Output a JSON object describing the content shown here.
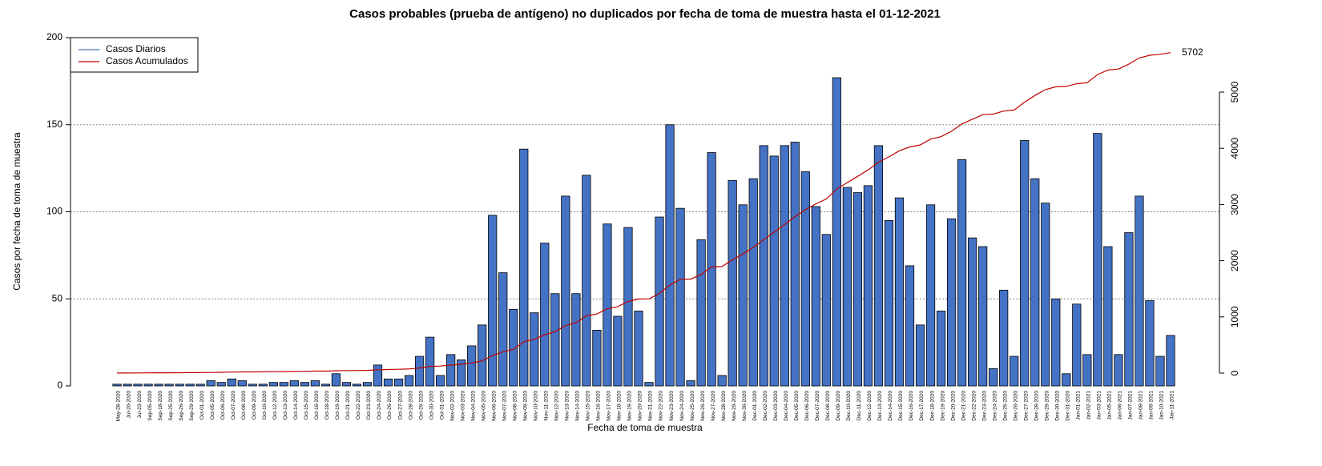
{
  "chart_data": {
    "type": "bar",
    "title": "Casos probables (prueba de antígeno) no duplicados por fecha de toma de muestra hasta el 01-12-2021",
    "x_label": "Fecha de toma de muestra",
    "y_label": "Casos por fecha de toma de muestra",
    "categories": [
      "May-28-2020",
      "Jul-20-2020",
      "Jul-23-2020",
      "Sep-05-2020",
      "Sep-18-2020",
      "Sep-25-2020",
      "Sep-26-2020",
      "Sep-29-2020",
      "Oct-01-2020",
      "Oct-05-2020",
      "Oct-06-2020",
      "Oct-07-2020",
      "Oct-08-2020",
      "Oct-09-2020",
      "Oct-10-2020",
      "Oct-12-2020",
      "Oct-13-2020",
      "Oct-14-2020",
      "Oct-15-2020",
      "Oct-16-2020",
      "Oct-18-2020",
      "Oct-19-2020",
      "Oct-21-2020",
      "Oct-22-2020",
      "Oct-23-2020",
      "Oct-24-2020",
      "Oct-26-2020",
      "Oct-27-2020",
      "Oct-28-2020",
      "Oct-29-2020",
      "Oct-30-2020",
      "Oct-31-2020",
      "Nov-02-2020",
      "Nov-03-2020",
      "Nov-04-2020",
      "Nov-05-2020",
      "Nov-06-2020",
      "Nov-07-2020",
      "Nov-08-2020",
      "Nov-09-2020",
      "Nov-10-2020",
      "Nov-11-2020",
      "Nov-12-2020",
      "Nov-13-2020",
      "Nov-14-2020",
      "Nov-15-2020",
      "Nov-16-2020",
      "Nov-17-2020",
      "Nov-18-2020",
      "Nov-19-2020",
      "Nov-20-2020",
      "Nov-21-2020",
      "Nov-22-2020",
      "Nov-23-2020",
      "Nov-24-2020",
      "Nov-25-2020",
      "Nov-26-2020",
      "Nov-27-2020",
      "Nov-28-2020",
      "Nov-29-2020",
      "Nov-30-2020",
      "Dec-01-2020",
      "Dec-02-2020",
      "Dec-03-2020",
      "Dec-04-2020",
      "Dec-05-2020",
      "Dec-06-2020",
      "Dec-07-2020",
      "Dec-08-2020",
      "Dec-09-2020",
      "Dec-10-2020",
      "Dec-11-2020",
      "Dec-12-2020",
      "Dec-13-2020",
      "Dec-14-2020",
      "Dec-15-2020",
      "Dec-16-2020",
      "Dec-17-2020",
      "Dec-18-2020",
      "Dec-19-2020",
      "Dec-20-2020",
      "Dec-21-2020",
      "Dec-22-2020",
      "Dec-23-2020",
      "Dec-24-2020",
      "Dec-25-2020",
      "Dec-26-2020",
      "Dec-27-2020",
      "Dec-28-2020",
      "Dec-29-2020",
      "Dec-30-2020",
      "Dec-31-2020",
      "Jan-01-2021",
      "Jan-02-2021",
      "Jan-03-2021",
      "Jan-05-2021",
      "Jan-06-2021",
      "Jan-07-2021",
      "Jan-08-2021",
      "Jan-09-2021",
      "Jan-10-2021",
      "Jan-11-2021"
    ],
    "series": [
      {
        "name": "Casos Diarios",
        "color": "#4472c4",
        "values": [
          1,
          1,
          1,
          1,
          1,
          1,
          1,
          1,
          1,
          3,
          2,
          4,
          3,
          1,
          1,
          2,
          2,
          3,
          2,
          3,
          1,
          7,
          2,
          1,
          2,
          12,
          4,
          4,
          6,
          17,
          28,
          6,
          18,
          15,
          23,
          35,
          98,
          65,
          44,
          136,
          42,
          82,
          53,
          109,
          53,
          121,
          32,
          93,
          40,
          91,
          43,
          2,
          97,
          150,
          102,
          3,
          84,
          134,
          6,
          118,
          104,
          119,
          138,
          132,
          138,
          140,
          123,
          103,
          87,
          177,
          114,
          111,
          115,
          138,
          95,
          108,
          69,
          35,
          104,
          43,
          96,
          130,
          85,
          80,
          10,
          55,
          17,
          141,
          119,
          105,
          50,
          7,
          47,
          18,
          145,
          80,
          18,
          88,
          109,
          49,
          17,
          29
        ]
      },
      {
        "name": "Casos Acumulados",
        "color": "#c00000",
        "axis": "y2",
        "values": [
          1,
          2,
          3,
          4,
          5,
          6,
          7,
          8,
          9,
          12,
          14,
          18,
          21,
          22,
          23,
          25,
          27,
          30,
          32,
          35,
          36,
          43,
          45,
          46,
          48,
          60,
          64,
          68,
          74,
          91,
          119,
          125,
          143,
          158,
          181,
          216,
          314,
          379,
          423,
          559,
          601,
          683,
          736,
          845,
          898,
          1019,
          1051,
          1144,
          1184,
          1275,
          1318,
          1320,
          1417,
          1567,
          1669,
          1672,
          1756,
          1890,
          1896,
          2014,
          2118,
          2237,
          2375,
          2507,
          2645,
          2785,
          2908,
          3011,
          3098,
          3275,
          3389,
          3500,
          3615,
          3753,
          3848,
          3956,
          4025,
          4060,
          4164,
          4207,
          4303,
          4433,
          4518,
          4598,
          4608,
          4663,
          4680,
          4821,
          4940,
          5045,
          5095,
          5102,
          5149,
          5167,
          5312,
          5392,
          5410,
          5498,
          5607,
          5656,
          5673,
          5702
        ]
      }
    ],
    "ylim": [
      0,
      200
    ],
    "yticks": [
      0,
      50,
      100,
      150,
      200
    ],
    "y2lim": [
      -228,
      5969
    ],
    "y2ticks": [
      0,
      1000,
      2000,
      3000,
      4000,
      5000
    ],
    "grid": true,
    "legend": "topleft"
  }
}
